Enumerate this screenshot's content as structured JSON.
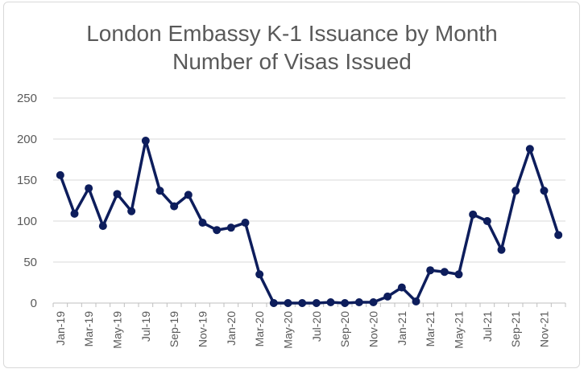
{
  "chart_data": {
    "type": "line",
    "title": "London Embassy K-1 Issuance by Month",
    "subtitle": "Number of Visas Issued",
    "xlabel": "",
    "ylabel": "",
    "ylim": [
      0,
      250
    ],
    "yticks": [
      0,
      50,
      100,
      150,
      200,
      250
    ],
    "grid": true,
    "legend": "none",
    "x": [
      "Jan-19",
      "Feb-19",
      "Mar-19",
      "Apr-19",
      "May-19",
      "Jun-19",
      "Jul-19",
      "Aug-19",
      "Sep-19",
      "Oct-19",
      "Nov-19",
      "Dec-19",
      "Jan-20",
      "Feb-20",
      "Mar-20",
      "Apr-20",
      "May-20",
      "Jun-20",
      "Jul-20",
      "Aug-20",
      "Sep-20",
      "Oct-20",
      "Nov-20",
      "Dec-20",
      "Jan-21",
      "Feb-21",
      "Mar-21",
      "Apr-21",
      "May-21",
      "Jun-21",
      "Jul-21",
      "Aug-21",
      "Sep-21",
      "Oct-21",
      "Nov-21",
      "Dec-21"
    ],
    "xtick_labels": [
      "Jan-19",
      "Mar-19",
      "May-19",
      "Jul-19",
      "Sep-19",
      "Nov-19",
      "Jan-20",
      "Mar-20",
      "May-20",
      "Jul-20",
      "Sep-20",
      "Nov-20",
      "Jan-21",
      "Mar-21",
      "May-21",
      "Jul-21",
      "Sep-21",
      "Nov-21"
    ],
    "series": [
      {
        "values": [
          156,
          109,
          140,
          94,
          133,
          112,
          198,
          137,
          118,
          132,
          98,
          89,
          92,
          98,
          35,
          0,
          0,
          0,
          0,
          1,
          0,
          1,
          1,
          8,
          19,
          2,
          40,
          38,
          35,
          108,
          100,
          65,
          137,
          188,
          137,
          83
        ],
        "color": "#0d1d5c"
      }
    ]
  }
}
